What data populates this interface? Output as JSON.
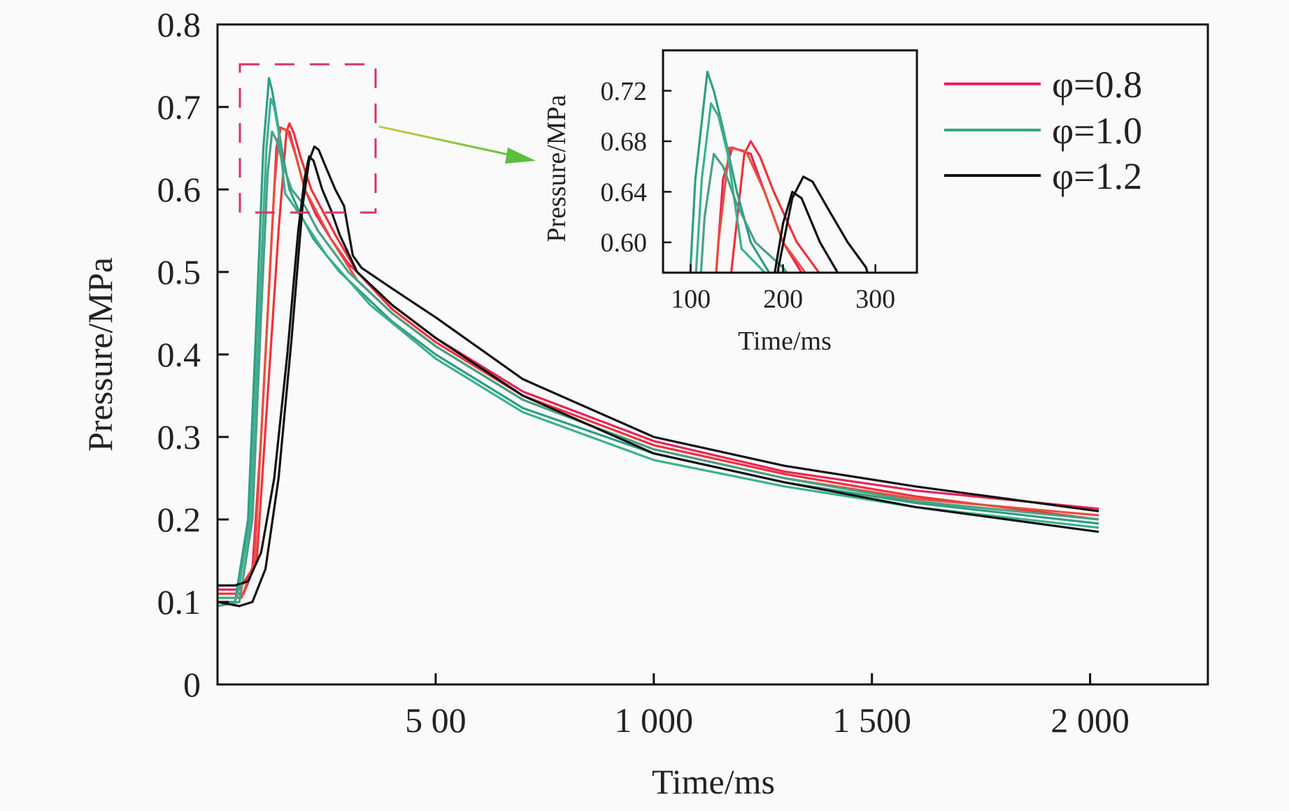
{
  "chart_data": {
    "type": "line",
    "xlabel": "Time/ms",
    "ylabel": "Pressure/MPa",
    "xlim": [
      0,
      2270
    ],
    "ylim": [
      0,
      0.8
    ],
    "xticks": [
      500,
      1000,
      1500,
      2000
    ],
    "xtick_labels": [
      "5 00",
      "1 000",
      "1 500",
      "2 000"
    ],
    "yticks": [
      0,
      0.1,
      0.2,
      0.3,
      0.4,
      0.5,
      0.6,
      0.7,
      0.8
    ],
    "ytick_labels": [
      "0",
      "0.1",
      "0.2",
      "0.3",
      "0.4",
      "0.5",
      "0.6",
      "0.7",
      "0.8"
    ],
    "grid": false,
    "legend_position": "top-right",
    "legend": [
      {
        "label": "φ=0.8",
        "color": "#e8245a"
      },
      {
        "label": "φ=1.0",
        "color": "#3aa587"
      },
      {
        "label": "φ=1.2",
        "color": "#111111"
      }
    ],
    "zoom_box": {
      "xlim": [
        60,
        365
      ],
      "ylim": [
        0.57,
        0.75
      ],
      "color": "#d8336a",
      "arrow_color": "#5bbf3a"
    },
    "inset": {
      "xlabel": "Time/ms",
      "ylabel": "Pressure/MPa",
      "xlim": [
        70,
        345
      ],
      "ylim": [
        0.576,
        0.752
      ],
      "xticks": [
        100,
        200,
        300
      ],
      "xtick_labels": [
        "100",
        "200",
        "300"
      ],
      "yticks": [
        0.6,
        0.64,
        0.68,
        0.72
      ],
      "ytick_labels": [
        "0.60",
        "0.64",
        "0.68",
        "0.72"
      ]
    },
    "series": [
      {
        "group": "φ=0.8",
        "color": "#e8245a",
        "points": [
          [
            0,
            0.115
          ],
          [
            50,
            0.115
          ],
          [
            80,
            0.14
          ],
          [
            100,
            0.3
          ],
          [
            120,
            0.5
          ],
          [
            135,
            0.65
          ],
          [
            145,
            0.675
          ],
          [
            165,
            0.67
          ],
          [
            180,
            0.64
          ],
          [
            200,
            0.6
          ],
          [
            225,
            0.57
          ],
          [
            260,
            0.54
          ],
          [
            300,
            0.51
          ],
          [
            400,
            0.46
          ],
          [
            500,
            0.42
          ],
          [
            700,
            0.355
          ],
          [
            1000,
            0.295
          ],
          [
            1300,
            0.258
          ],
          [
            1600,
            0.235
          ],
          [
            2020,
            0.213
          ]
        ]
      },
      {
        "group": "φ=0.8",
        "color": "#f0303a",
        "points": [
          [
            0,
            0.11
          ],
          [
            60,
            0.11
          ],
          [
            90,
            0.15
          ],
          [
            115,
            0.35
          ],
          [
            140,
            0.55
          ],
          [
            158,
            0.67
          ],
          [
            165,
            0.68
          ],
          [
            175,
            0.668
          ],
          [
            190,
            0.64
          ],
          [
            215,
            0.6
          ],
          [
            235,
            0.58
          ],
          [
            270,
            0.545
          ],
          [
            320,
            0.5
          ],
          [
            400,
            0.455
          ],
          [
            500,
            0.415
          ],
          [
            700,
            0.35
          ],
          [
            1000,
            0.29
          ],
          [
            1300,
            0.255
          ],
          [
            1600,
            0.228
          ],
          [
            2020,
            0.2
          ]
        ]
      },
      {
        "group": "φ=0.8",
        "color": "#e8503a",
        "points": [
          [
            0,
            0.105
          ],
          [
            55,
            0.105
          ],
          [
            85,
            0.15
          ],
          [
            110,
            0.4
          ],
          [
            130,
            0.6
          ],
          [
            142,
            0.675
          ],
          [
            160,
            0.672
          ],
          [
            180,
            0.64
          ],
          [
            200,
            0.6
          ],
          [
            225,
            0.575
          ],
          [
            260,
            0.54
          ],
          [
            320,
            0.49
          ],
          [
            400,
            0.45
          ],
          [
            500,
            0.41
          ],
          [
            700,
            0.345
          ],
          [
            1000,
            0.285
          ],
          [
            1300,
            0.25
          ],
          [
            1600,
            0.225
          ],
          [
            2020,
            0.205
          ]
        ]
      },
      {
        "group": "φ=1.0",
        "color": "#2f9e82",
        "points": [
          [
            0,
            0.1
          ],
          [
            40,
            0.1
          ],
          [
            70,
            0.2
          ],
          [
            90,
            0.45
          ],
          [
            105,
            0.65
          ],
          [
            118,
            0.735
          ],
          [
            125,
            0.72
          ],
          [
            135,
            0.69
          ],
          [
            150,
            0.64
          ],
          [
            165,
            0.6
          ],
          [
            190,
            0.57
          ],
          [
            220,
            0.54
          ],
          [
            280,
            0.5
          ],
          [
            400,
            0.44
          ],
          [
            500,
            0.4
          ],
          [
            700,
            0.335
          ],
          [
            1000,
            0.28
          ],
          [
            1300,
            0.245
          ],
          [
            1600,
            0.22
          ],
          [
            2020,
            0.195
          ]
        ]
      },
      {
        "group": "φ=1.0",
        "color": "#3bb08f",
        "points": [
          [
            0,
            0.105
          ],
          [
            45,
            0.105
          ],
          [
            75,
            0.2
          ],
          [
            95,
            0.45
          ],
          [
            112,
            0.65
          ],
          [
            122,
            0.71
          ],
          [
            130,
            0.7
          ],
          [
            140,
            0.67
          ],
          [
            150,
            0.62
          ],
          [
            155,
            0.595
          ],
          [
            175,
            0.58
          ],
          [
            200,
            0.56
          ],
          [
            250,
            0.52
          ],
          [
            350,
            0.46
          ],
          [
            500,
            0.395
          ],
          [
            700,
            0.33
          ],
          [
            1000,
            0.272
          ],
          [
            1300,
            0.24
          ],
          [
            1600,
            0.215
          ],
          [
            2020,
            0.19
          ]
        ]
      },
      {
        "group": "φ=1.0",
        "color": "#4a9f88",
        "points": [
          [
            0,
            0.095
          ],
          [
            50,
            0.1
          ],
          [
            80,
            0.2
          ],
          [
            100,
            0.45
          ],
          [
            115,
            0.62
          ],
          [
            125,
            0.67
          ],
          [
            135,
            0.66
          ],
          [
            150,
            0.63
          ],
          [
            170,
            0.6
          ],
          [
            200,
            0.58
          ],
          [
            230,
            0.55
          ],
          [
            300,
            0.5
          ],
          [
            400,
            0.45
          ],
          [
            500,
            0.41
          ],
          [
            700,
            0.345
          ],
          [
            1000,
            0.285
          ],
          [
            1300,
            0.25
          ],
          [
            1600,
            0.222
          ],
          [
            2020,
            0.2
          ]
        ]
      },
      {
        "group": "φ=1.2",
        "color": "#111111",
        "points": [
          [
            0,
            0.12
          ],
          [
            40,
            0.12
          ],
          [
            70,
            0.125
          ],
          [
            100,
            0.16
          ],
          [
            130,
            0.25
          ],
          [
            160,
            0.4
          ],
          [
            185,
            0.55
          ],
          [
            200,
            0.615
          ],
          [
            210,
            0.64
          ],
          [
            220,
            0.635
          ],
          [
            240,
            0.6
          ],
          [
            260,
            0.575
          ],
          [
            280,
            0.545
          ],
          [
            320,
            0.5
          ],
          [
            400,
            0.46
          ],
          [
            500,
            0.42
          ],
          [
            700,
            0.35
          ],
          [
            1000,
            0.28
          ],
          [
            1300,
            0.245
          ],
          [
            1600,
            0.215
          ],
          [
            2020,
            0.185
          ]
        ]
      },
      {
        "group": "φ=1.2",
        "color": "#111111",
        "points": [
          [
            0,
            0.1
          ],
          [
            50,
            0.095
          ],
          [
            80,
            0.1
          ],
          [
            110,
            0.14
          ],
          [
            140,
            0.25
          ],
          [
            170,
            0.42
          ],
          [
            195,
            0.58
          ],
          [
            210,
            0.635
          ],
          [
            222,
            0.652
          ],
          [
            232,
            0.648
          ],
          [
            250,
            0.625
          ],
          [
            270,
            0.6
          ],
          [
            290,
            0.58
          ],
          [
            310,
            0.52
          ],
          [
            330,
            0.505
          ],
          [
            400,
            0.48
          ],
          [
            500,
            0.445
          ],
          [
            700,
            0.37
          ],
          [
            1000,
            0.3
          ],
          [
            1300,
            0.265
          ],
          [
            1600,
            0.24
          ],
          [
            2020,
            0.21
          ]
        ]
      }
    ]
  }
}
